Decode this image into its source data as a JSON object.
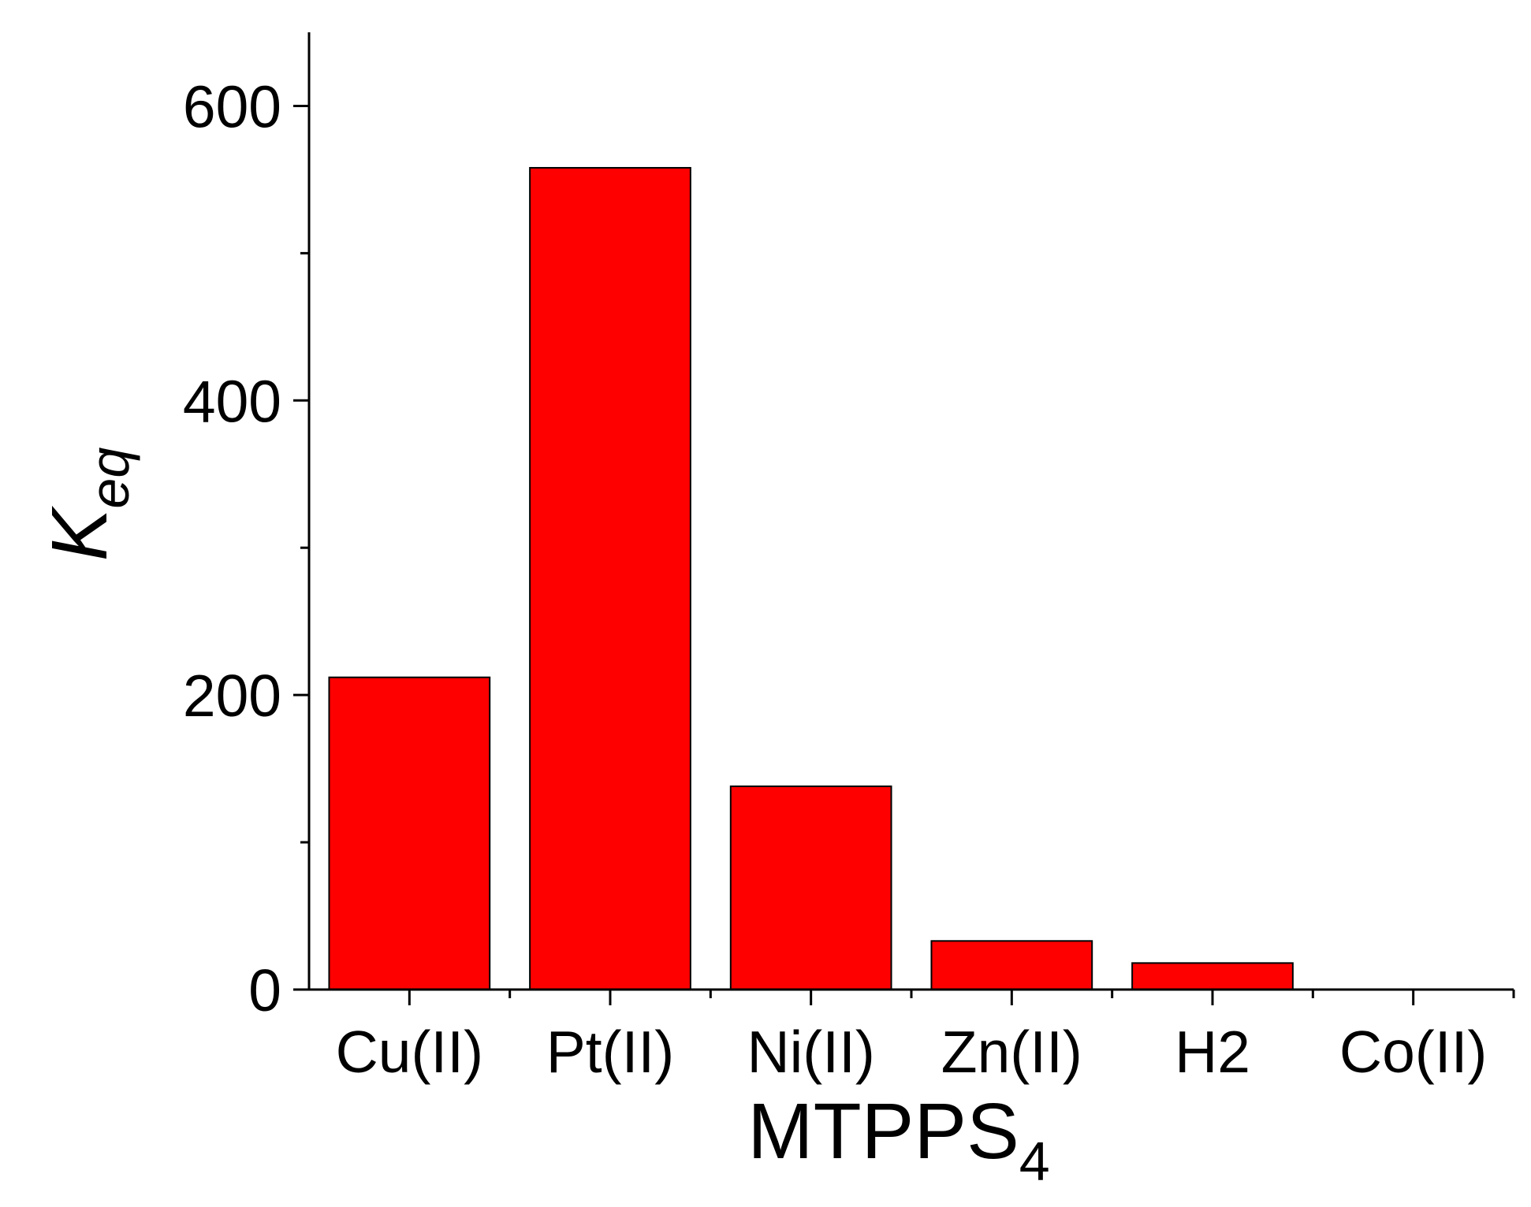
{
  "chart_data": {
    "type": "bar",
    "categories": [
      "Cu(II)",
      "Pt(II)",
      "Ni(II)",
      "Zn(II)",
      "H2",
      "Co(II)"
    ],
    "values": [
      212,
      558,
      138,
      33,
      18,
      0
    ],
    "color": "#ff0000",
    "ylim": [
      0,
      650
    ],
    "yticks": [
      0,
      200,
      400,
      600
    ],
    "minor_yticks": [
      100,
      300,
      500
    ],
    "xlabel": "MTPPS",
    "xlabel_subscript": "4",
    "ylabel": "K",
    "ylabel_subscript": "eq"
  }
}
